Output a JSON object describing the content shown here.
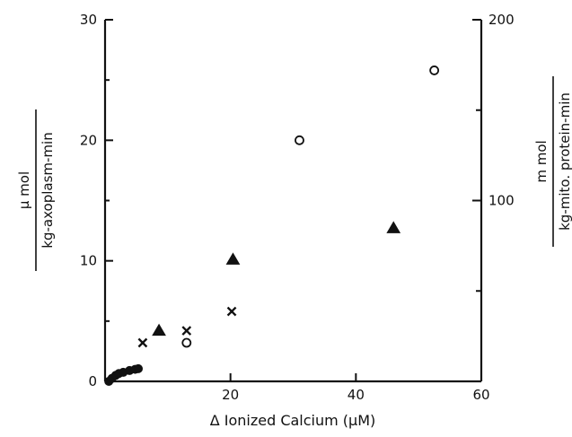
{
  "chart_data": {
    "type": "scatter",
    "title": "",
    "xlabel": "Δ Ionized Calcium (μM)",
    "ylabel_left": {
      "numerator": "μ mol",
      "denominator": "kg-axoplasm-min"
    },
    "ylabel_right": {
      "numerator": "m mol",
      "denominator": "kg-mito. protein-min"
    },
    "xlim": [
      0,
      60
    ],
    "ylim_left": [
      0,
      30
    ],
    "ylim_right": [
      0,
      200
    ],
    "x_ticks": [
      {
        "value": 20,
        "label": "20"
      },
      {
        "value": 40,
        "label": "40"
      },
      {
        "value": 60,
        "label": "60"
      }
    ],
    "y_left_ticks": [
      {
        "value": 0,
        "label": "0"
      },
      {
        "value": 10,
        "label": "10"
      },
      {
        "value": 20,
        "label": "20"
      },
      {
        "value": 30,
        "label": "30"
      }
    ],
    "y_right_ticks": [
      {
        "value": 100,
        "label": "100"
      },
      {
        "value": 200,
        "label": "200"
      }
    ],
    "grid": false,
    "series": [
      {
        "marker": "open-circle",
        "points": [
          [
            13,
            3.2
          ],
          [
            31,
            20.0
          ],
          [
            52.5,
            25.8
          ]
        ]
      },
      {
        "marker": "filled-triangle",
        "points": [
          [
            8.6,
            4.2
          ],
          [
            20.4,
            10.1
          ],
          [
            46.0,
            12.7
          ]
        ]
      },
      {
        "marker": "cross",
        "points": [
          [
            6.0,
            3.2
          ],
          [
            13.0,
            4.2
          ],
          [
            20.2,
            5.8
          ]
        ]
      },
      {
        "marker": "filled-circle",
        "points": [
          [
            0.6,
            0.0
          ],
          [
            1.1,
            0.25
          ],
          [
            1.7,
            0.5
          ],
          [
            2.2,
            0.65
          ],
          [
            2.9,
            0.75
          ],
          [
            3.9,
            0.9
          ],
          [
            4.8,
            1.0
          ],
          [
            5.3,
            1.05
          ]
        ]
      }
    ]
  }
}
